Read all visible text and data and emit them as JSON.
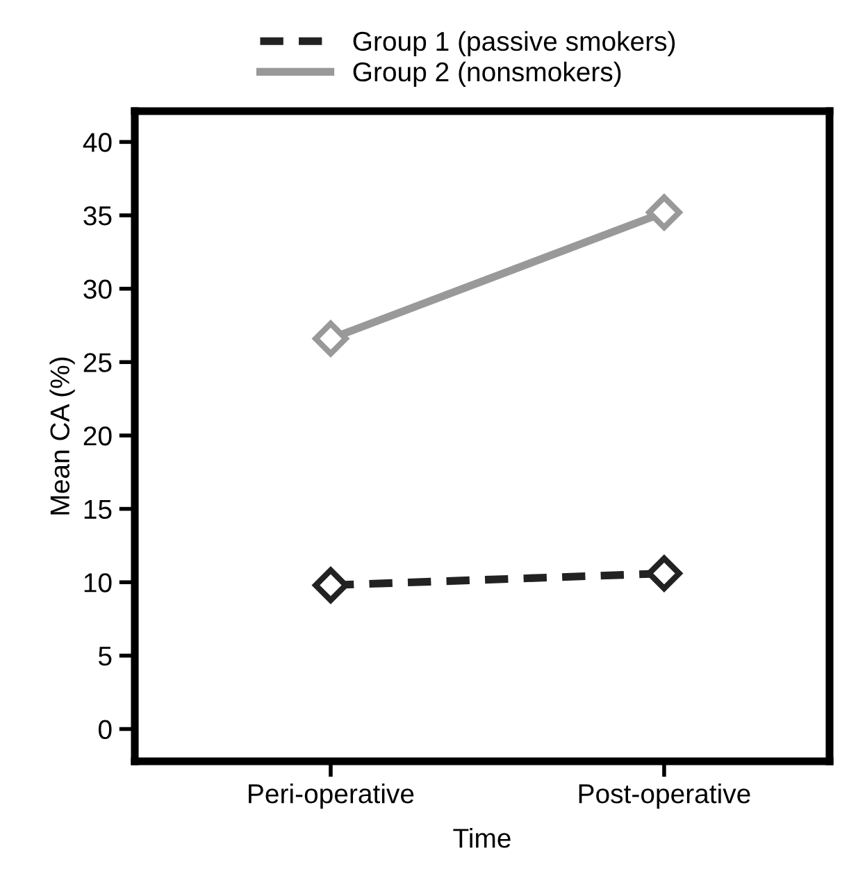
{
  "chart_data": {
    "type": "line",
    "xlabel": "Time",
    "ylabel": "Mean CA (%)",
    "categories": [
      "Peri-operative",
      "Post-operative"
    ],
    "series": [
      {
        "name": "Group 1 (passive smokers)",
        "color": "#222222",
        "values": [
          9.8,
          10.6
        ],
        "line_style": "dashed"
      },
      {
        "name": "Group 2 (nonsmokers)",
        "color": "#999999",
        "values": [
          26.6,
          35.2
        ],
        "line_style": "solid"
      }
    ],
    "ylim": [
      -2.2,
      42.1
    ],
    "yticks": [
      0,
      5,
      10,
      15,
      20,
      25,
      30,
      35,
      40
    ],
    "marker": "diamond",
    "grid": false,
    "legend": "top"
  }
}
